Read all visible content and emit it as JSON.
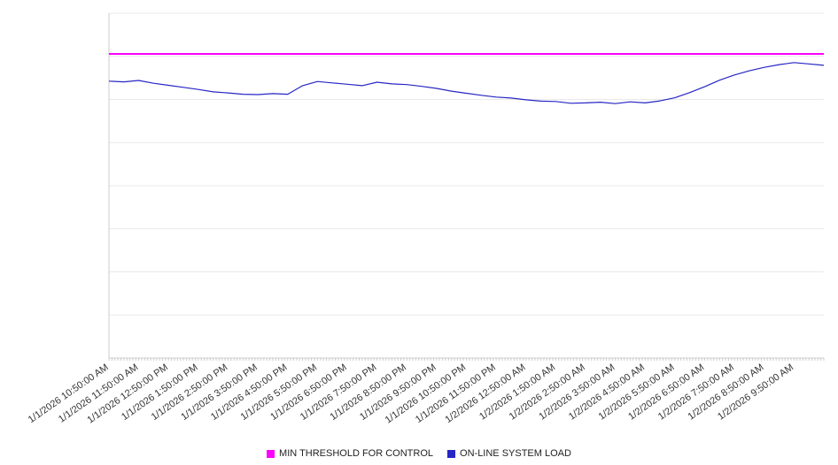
{
  "chart_data": {
    "type": "line",
    "title": "",
    "xlabel": "",
    "ylabel": "",
    "grid": "horizontal gridlines only, y-axis unlabeled",
    "legend_position": "bottom-center",
    "ylim": [
      0,
      100
    ],
    "x_labels": [
      "1/1/2026 10:50:00 AM",
      "1/1/2026 11:50:00 AM",
      "1/1/2026 12:50:00 PM",
      "1/1/2026 1:50:00 PM",
      "1/1/2026 2:50:00 PM",
      "1/1/2026 3:50:00 PM",
      "1/1/2026 4:50:00 PM",
      "1/1/2026 5:50:00 PM",
      "1/1/2026 6:50:00 PM",
      "1/1/2026 7:50:00 PM",
      "1/1/2026 8:50:00 PM",
      "1/1/2026 9:50:00 PM",
      "1/1/2026 10:50:00 PM",
      "1/1/2026 11:50:00 PM",
      "1/2/2026 12:50:00 AM",
      "1/2/2026 1:50:00 AM",
      "1/2/2026 2:50:00 AM",
      "1/2/2026 3:50:00 AM",
      "1/2/2026 4:50:00 AM",
      "1/2/2026 5:50:00 AM",
      "1/2/2026 6:50:00 AM",
      "1/2/2026 7:50:00 AM",
      "1/2/2026 8:50:00 AM",
      "1/2/2026 9:50:00 AM"
    ],
    "points_per_hour": 2,
    "series": [
      {
        "name": "MIN THRESHOLD FOR CONTROL",
        "type": "constant",
        "color": "#ff00ff",
        "value": 88.2
      },
      {
        "name": "ON-LINE SYSTEM LOAD",
        "type": "line",
        "color": "#2626c4",
        "values": [
          80.3,
          80.1,
          80.5,
          79.7,
          79.1,
          78.5,
          77.9,
          77.2,
          76.9,
          76.5,
          76.4,
          76.7,
          76.5,
          79.0,
          80.2,
          79.8,
          79.4,
          79.0,
          80.0,
          79.5,
          79.3,
          78.8,
          78.2,
          77.4,
          76.8,
          76.2,
          75.7,
          75.4,
          74.9,
          74.5,
          74.4,
          73.9,
          74.0,
          74.2,
          73.8,
          74.3,
          74.0,
          74.6,
          75.5,
          77.0,
          78.7,
          80.6,
          82.1,
          83.3,
          84.3,
          85.1,
          85.7,
          85.3,
          84.9
        ]
      }
    ]
  },
  "legend": {
    "items": [
      {
        "label": "MIN THRESHOLD FOR CONTROL"
      },
      {
        "label": "ON-LINE SYSTEM LOAD"
      }
    ]
  },
  "colors": {
    "axis": "#cccccc",
    "gridline": "#e9e9e9",
    "label_text": "#333333"
  }
}
